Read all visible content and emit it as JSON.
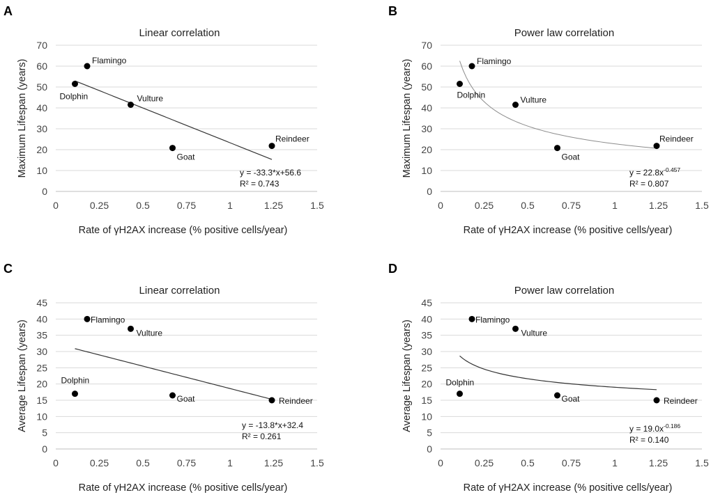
{
  "chart_data": [
    {
      "type": "scatter",
      "panel_label": "A",
      "title": "Linear correlation",
      "xlabel": "Rate of γH2AX increase (% positive cells/year)",
      "ylabel": "Maximum Lifespan (years)",
      "xlim": [
        0,
        1.5
      ],
      "ylim": [
        0,
        70
      ],
      "xticks": [
        "0",
        "0.25",
        "0.5",
        "0.75",
        "1",
        "1.25",
        "1.5"
      ],
      "yticks": [
        "0",
        "10",
        "20",
        "30",
        "40",
        "50",
        "60",
        "70"
      ],
      "points": [
        {
          "name": "Dolphin",
          "x": 0.11,
          "y": 51.5
        },
        {
          "name": "Flamingo",
          "x": 0.18,
          "y": 60
        },
        {
          "name": "Vulture",
          "x": 0.43,
          "y": 41.5
        },
        {
          "name": "Goat",
          "x": 0.67,
          "y": 20.8
        },
        {
          "name": "Reindeer",
          "x": 1.24,
          "y": 21.8
        }
      ],
      "trendline": {
        "kind": "linear",
        "a": -33.3,
        "b": 56.6,
        "x_range": [
          0.11,
          1.24
        ]
      },
      "equation": "y = -33.3*x+56.6",
      "r2": "R² = 0.743"
    },
    {
      "type": "scatter",
      "panel_label": "B",
      "title": "Power law correlation",
      "xlabel": "Rate of γH2AX increase (% positive cells/year)",
      "ylabel": "Maximum Lifespan (years)",
      "xlim": [
        0,
        1.5
      ],
      "ylim": [
        0,
        70
      ],
      "xticks": [
        "0",
        "0.25",
        "0.5",
        "0.75",
        "1",
        "1.25",
        "1.5"
      ],
      "yticks": [
        "0",
        "10",
        "20",
        "30",
        "40",
        "50",
        "60",
        "70"
      ],
      "points": [
        {
          "name": "Dolphin",
          "x": 0.11,
          "y": 51.5
        },
        {
          "name": "Flamingo",
          "x": 0.18,
          "y": 60
        },
        {
          "name": "Vulture",
          "x": 0.43,
          "y": 41.5
        },
        {
          "name": "Goat",
          "x": 0.67,
          "y": 20.8
        },
        {
          "name": "Reindeer",
          "x": 1.24,
          "y": 21.8
        }
      ],
      "trendline": {
        "kind": "power",
        "a": 22.8,
        "b": -0.457,
        "x_range": [
          0.11,
          1.24
        ]
      },
      "equation_base": "y = 22.8x",
      "equation_exp": "-0.457",
      "r2": "R² = 0.807"
    },
    {
      "type": "scatter",
      "panel_label": "C",
      "title": "Linear correlation",
      "xlabel": "Rate of γH2AX increase (% positive cells/year)",
      "ylabel": "Average Lifespan (years)",
      "xlim": [
        0,
        1.5
      ],
      "ylim": [
        0,
        45
      ],
      "xticks": [
        "0",
        "0.25",
        "0.5",
        "0.75",
        "1",
        "1.25",
        "1.5"
      ],
      "yticks": [
        "0",
        "5",
        "10",
        "15",
        "20",
        "25",
        "30",
        "35",
        "40",
        "45"
      ],
      "points": [
        {
          "name": "Dolphin",
          "x": 0.11,
          "y": 17
        },
        {
          "name": "Flamingo",
          "x": 0.18,
          "y": 40
        },
        {
          "name": "Vulture",
          "x": 0.43,
          "y": 37
        },
        {
          "name": "Goat",
          "x": 0.67,
          "y": 16.5
        },
        {
          "name": "Reindeer",
          "x": 1.24,
          "y": 15
        }
      ],
      "trendline": {
        "kind": "linear",
        "a": -13.8,
        "b": 32.4,
        "x_range": [
          0.11,
          1.24
        ]
      },
      "equation": "y = -13.8*x+32.4",
      "r2": "R² = 0.261"
    },
    {
      "type": "scatter",
      "panel_label": "D",
      "title": "Power law correlation",
      "xlabel": "Rate of γH2AX increase (% positive cells/year)",
      "ylabel": "Average Lifespan (years)",
      "xlim": [
        0,
        1.5
      ],
      "ylim": [
        0,
        45
      ],
      "xticks": [
        "0",
        "0.25",
        "0.5",
        "0.75",
        "1",
        "1.25",
        "1.5"
      ],
      "yticks": [
        "0",
        "5",
        "10",
        "15",
        "20",
        "25",
        "30",
        "35",
        "40",
        "45"
      ],
      "points": [
        {
          "name": "Dolphin",
          "x": 0.11,
          "y": 17
        },
        {
          "name": "Flamingo",
          "x": 0.18,
          "y": 40
        },
        {
          "name": "Vulture",
          "x": 0.43,
          "y": 37
        },
        {
          "name": "Goat",
          "x": 0.67,
          "y": 16.5
        },
        {
          "name": "Reindeer",
          "x": 1.24,
          "y": 15
        }
      ],
      "trendline": {
        "kind": "power",
        "a": 19.0,
        "b": -0.186,
        "x_range": [
          0.11,
          1.24
        ]
      },
      "equation_base": "y = 19.0x",
      "equation_exp": "-0.186",
      "r2": "R² = 0.140"
    }
  ]
}
